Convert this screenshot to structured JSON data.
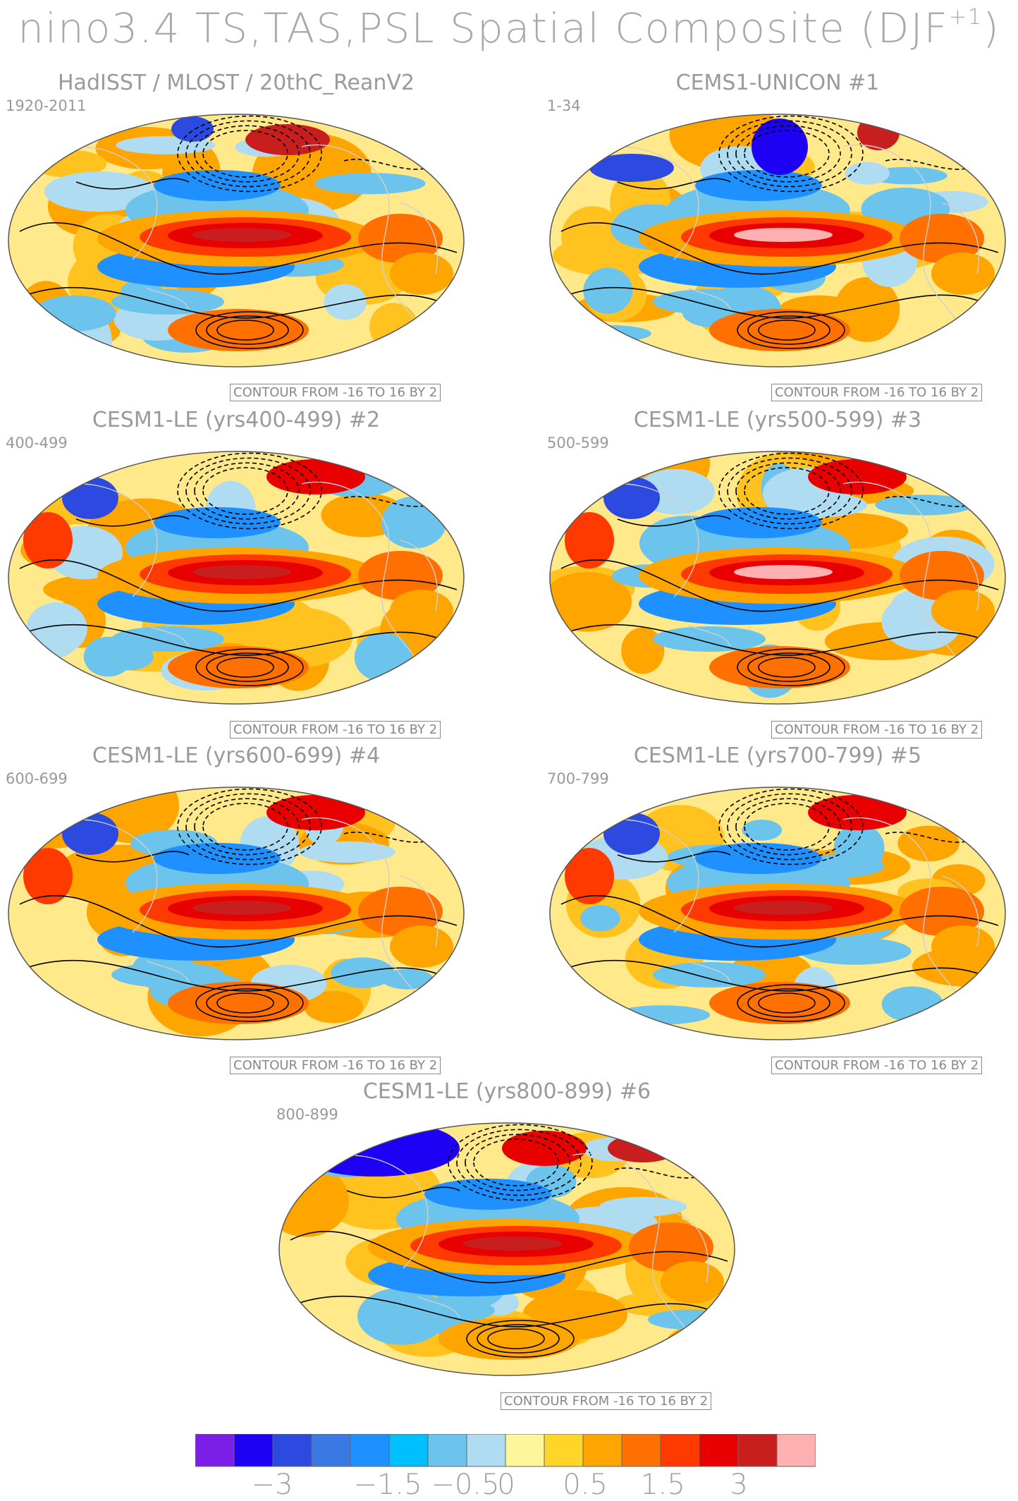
{
  "figure": {
    "title_main": "nino3.4 TS,TAS,PSL Spatial Composite (DJF",
    "title_sup": "+1",
    "title_close": ")"
  },
  "panels": [
    {
      "title": "HadISST / MLOST / 20thC_ReanV2",
      "years": "1920-2011",
      "contour": "CONTOUR FROM -16 TO 16 BY 2",
      "variant": "obs"
    },
    {
      "title": "CEMS1-UNICON        #1",
      "years": "1-34",
      "contour": "CONTOUR FROM -16 TO 16 BY 2",
      "variant": "unicon"
    },
    {
      "title": "CESM1-LE (yrs400-499) #2",
      "years": "400-499",
      "contour": "CONTOUR FROM -16 TO 16 BY 2",
      "variant": "le2"
    },
    {
      "title": "CESM1-LE (yrs500-599) #3",
      "years": "500-599",
      "contour": "CONTOUR FROM -16 TO 16 BY 2",
      "variant": "le3"
    },
    {
      "title": "CESM1-LE (yrs600-699) #4",
      "years": "600-699",
      "contour": "CONTOUR FROM -16 TO 16 BY 2",
      "variant": "le4"
    },
    {
      "title": "CESM1-LE (yrs700-799) #5",
      "years": "700-799",
      "contour": "CONTOUR FROM -16 TO 16 BY 2",
      "variant": "le5"
    },
    {
      "title": "CESM1-LE (yrs800-899) #6",
      "years": "800-899",
      "contour": "CONTOUR FROM -16 TO 16 BY 2",
      "variant": "le6"
    }
  ],
  "colorbar": {
    "colors": [
      "#7a1ee8",
      "#1e00f5",
      "#2c4ae0",
      "#3a78e4",
      "#1e90ff",
      "#00bfff",
      "#6cc3ec",
      "#b0dcf2",
      "#fff59a",
      "#ffd52a",
      "#ffa500",
      "#ff7000",
      "#ff3a00",
      "#e80000",
      "#c81e1e",
      "#ffb0b0"
    ],
    "labels": [
      "−3",
      "−1.5",
      "−0.5",
      "0",
      "0.5",
      "1.5",
      "3"
    ]
  }
}
